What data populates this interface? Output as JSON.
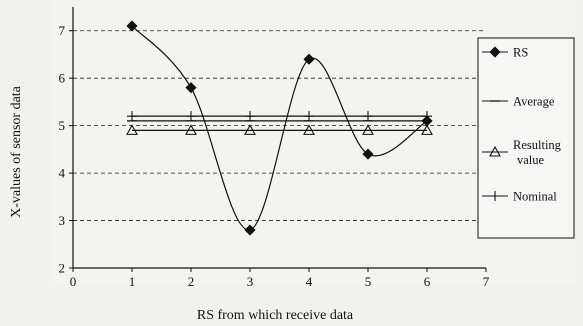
{
  "background_text": {
    "lines": [
      "",
      "",
      "",
      "",
      "",
      "",
      "",
      ""
    ],
    "heading": ""
  },
  "chart_data": {
    "type": "line",
    "title": "",
    "xlabel": "RS from which receive data",
    "ylabel": "X-values of sensor data",
    "xlim": [
      0,
      7
    ],
    "ylim": [
      2,
      7.5
    ],
    "x_ticks": [
      0,
      1,
      2,
      3,
      4,
      5,
      6,
      7
    ],
    "y_ticks": [
      2,
      3,
      4,
      5,
      6,
      7
    ],
    "grid": "horizontal dashed",
    "legend_position": "right",
    "x": [
      1,
      2,
      3,
      4,
      5,
      6
    ],
    "series": [
      {
        "name": "RS",
        "marker": "diamond",
        "smooth": true,
        "color": "#111111",
        "values": [
          7.1,
          5.8,
          2.8,
          6.4,
          4.4,
          5.1
        ]
      },
      {
        "name": "Average",
        "marker": "dash",
        "smooth": false,
        "color": "#111111",
        "values": [
          5.1,
          5.1,
          5.1,
          5.1,
          5.1,
          5.1
        ]
      },
      {
        "name": "Resulting value",
        "marker": "triangle",
        "smooth": false,
        "color": "#111111",
        "values": [
          4.9,
          4.9,
          4.9,
          4.9,
          4.9,
          4.9
        ]
      },
      {
        "name": "Nominal",
        "marker": "plus",
        "smooth": false,
        "color": "#111111",
        "values": [
          5.2,
          5.2,
          5.2,
          5.2,
          5.2,
          5.2
        ]
      }
    ]
  }
}
